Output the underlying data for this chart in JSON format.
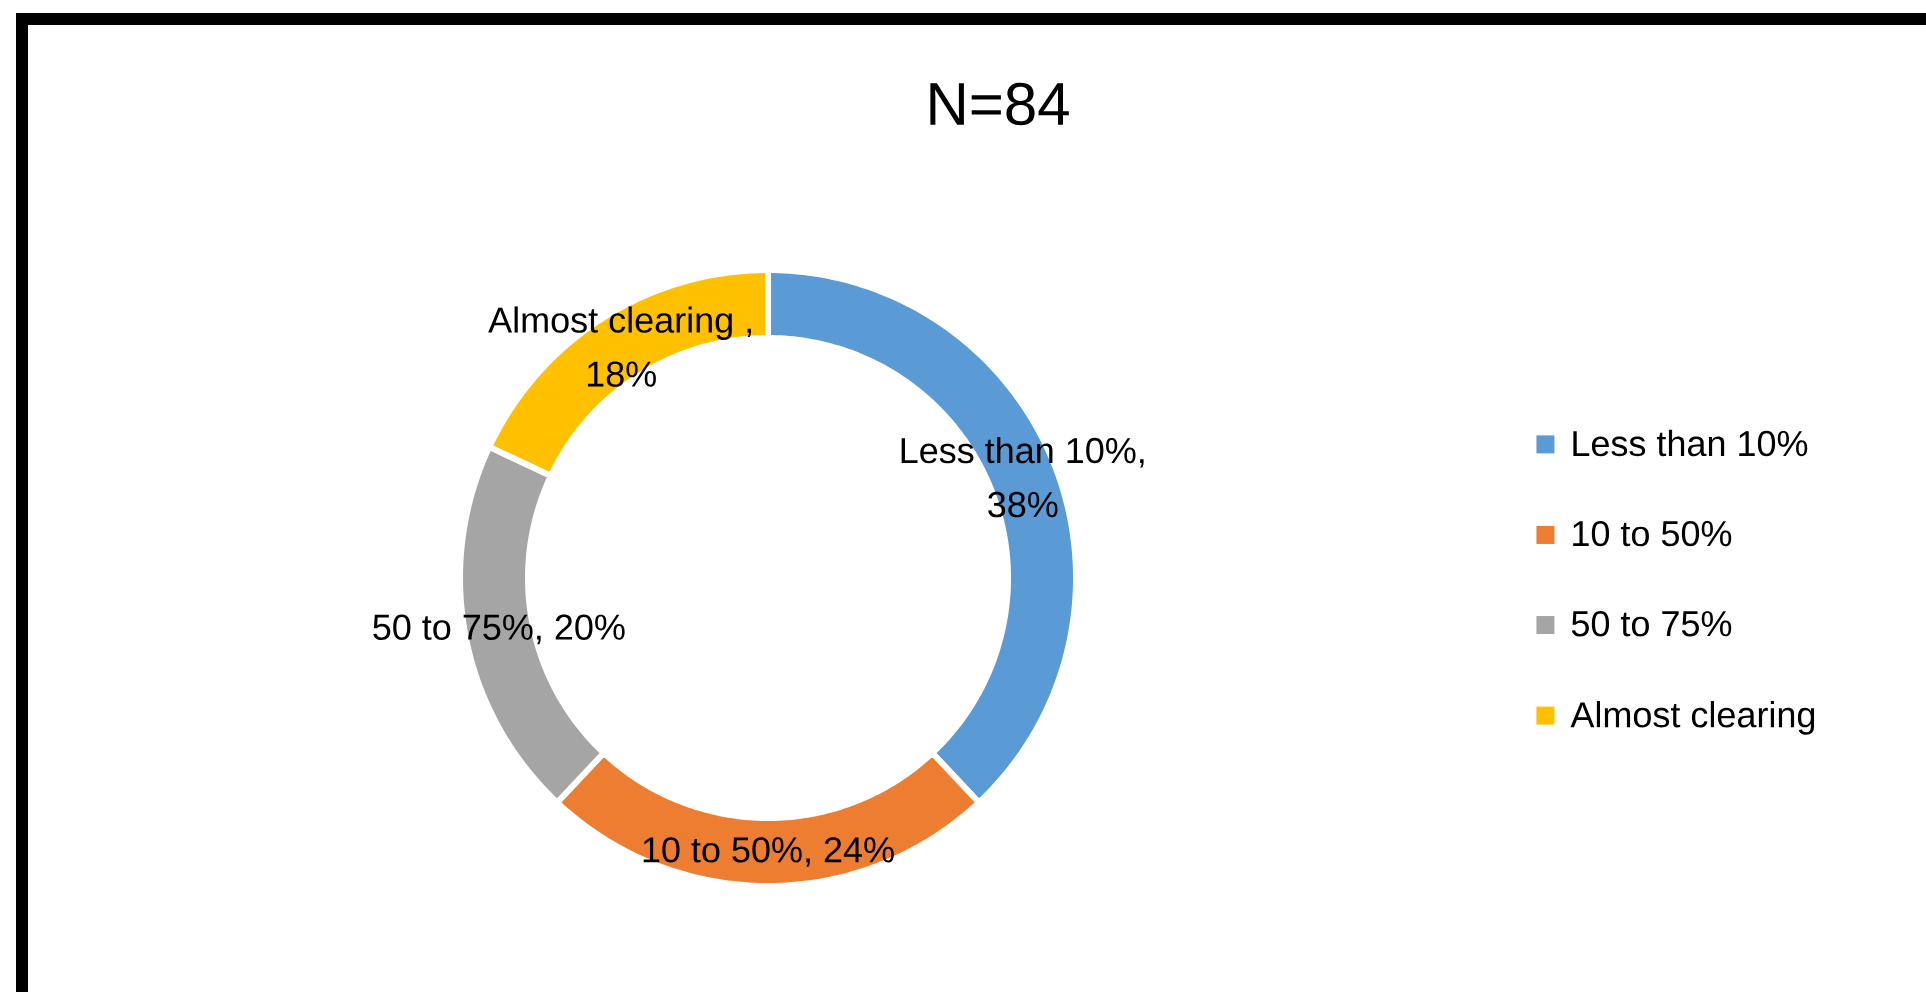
{
  "chart_data": {
    "type": "donut",
    "title": "N=84",
    "categories": [
      "Less than 10%",
      "10 to 50%",
      "50 to 75%",
      "Almost clearing"
    ],
    "values": [
      38,
      24,
      20,
      18
    ],
    "colors": [
      "#5b9bd5",
      "#ed7d31",
      "#a5a5a5",
      "#ffc000"
    ],
    "value_labels": [
      "Less than 10%, 38%",
      "10 to 50%, 24%",
      "50 to 75%, 20%",
      "Almost clearing , 18%"
    ],
    "legend": "right"
  }
}
